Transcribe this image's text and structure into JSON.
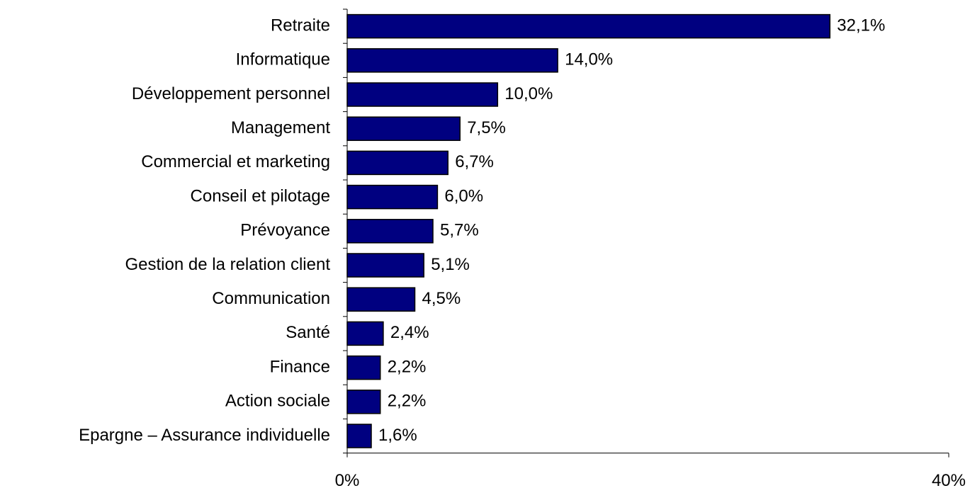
{
  "chart_data": {
    "type": "bar",
    "orientation": "horizontal",
    "title": "",
    "xlabel": "",
    "ylabel": "",
    "categories": [
      "Retraite",
      "Informatique",
      "Développement personnel",
      "Management",
      "Commercial et marketing",
      "Conseil et pilotage",
      "Prévoyance",
      "Gestion de la relation client",
      "Communication",
      "Santé",
      "Finance",
      "Action sociale",
      "Epargne –  Assurance individuelle"
    ],
    "values": [
      32.1,
      14.0,
      10.0,
      7.5,
      6.7,
      6.0,
      5.7,
      5.1,
      4.5,
      2.4,
      2.2,
      2.2,
      1.6
    ],
    "value_labels": [
      "32,1%",
      "14,0%",
      "10,0%",
      "7,5%",
      "6,7%",
      "6,0%",
      "5,7%",
      "5,1%",
      "4,5%",
      "2,4%",
      "2,2%",
      "2,2%",
      "1,6%"
    ],
    "xlim": [
      0,
      40
    ],
    "x_tick_labels": [
      "0%",
      "40%"
    ],
    "grid": false,
    "legend": "none",
    "bar_color": "#000080",
    "bar_edge_color": "#000000",
    "axis_color": "#000000"
  }
}
